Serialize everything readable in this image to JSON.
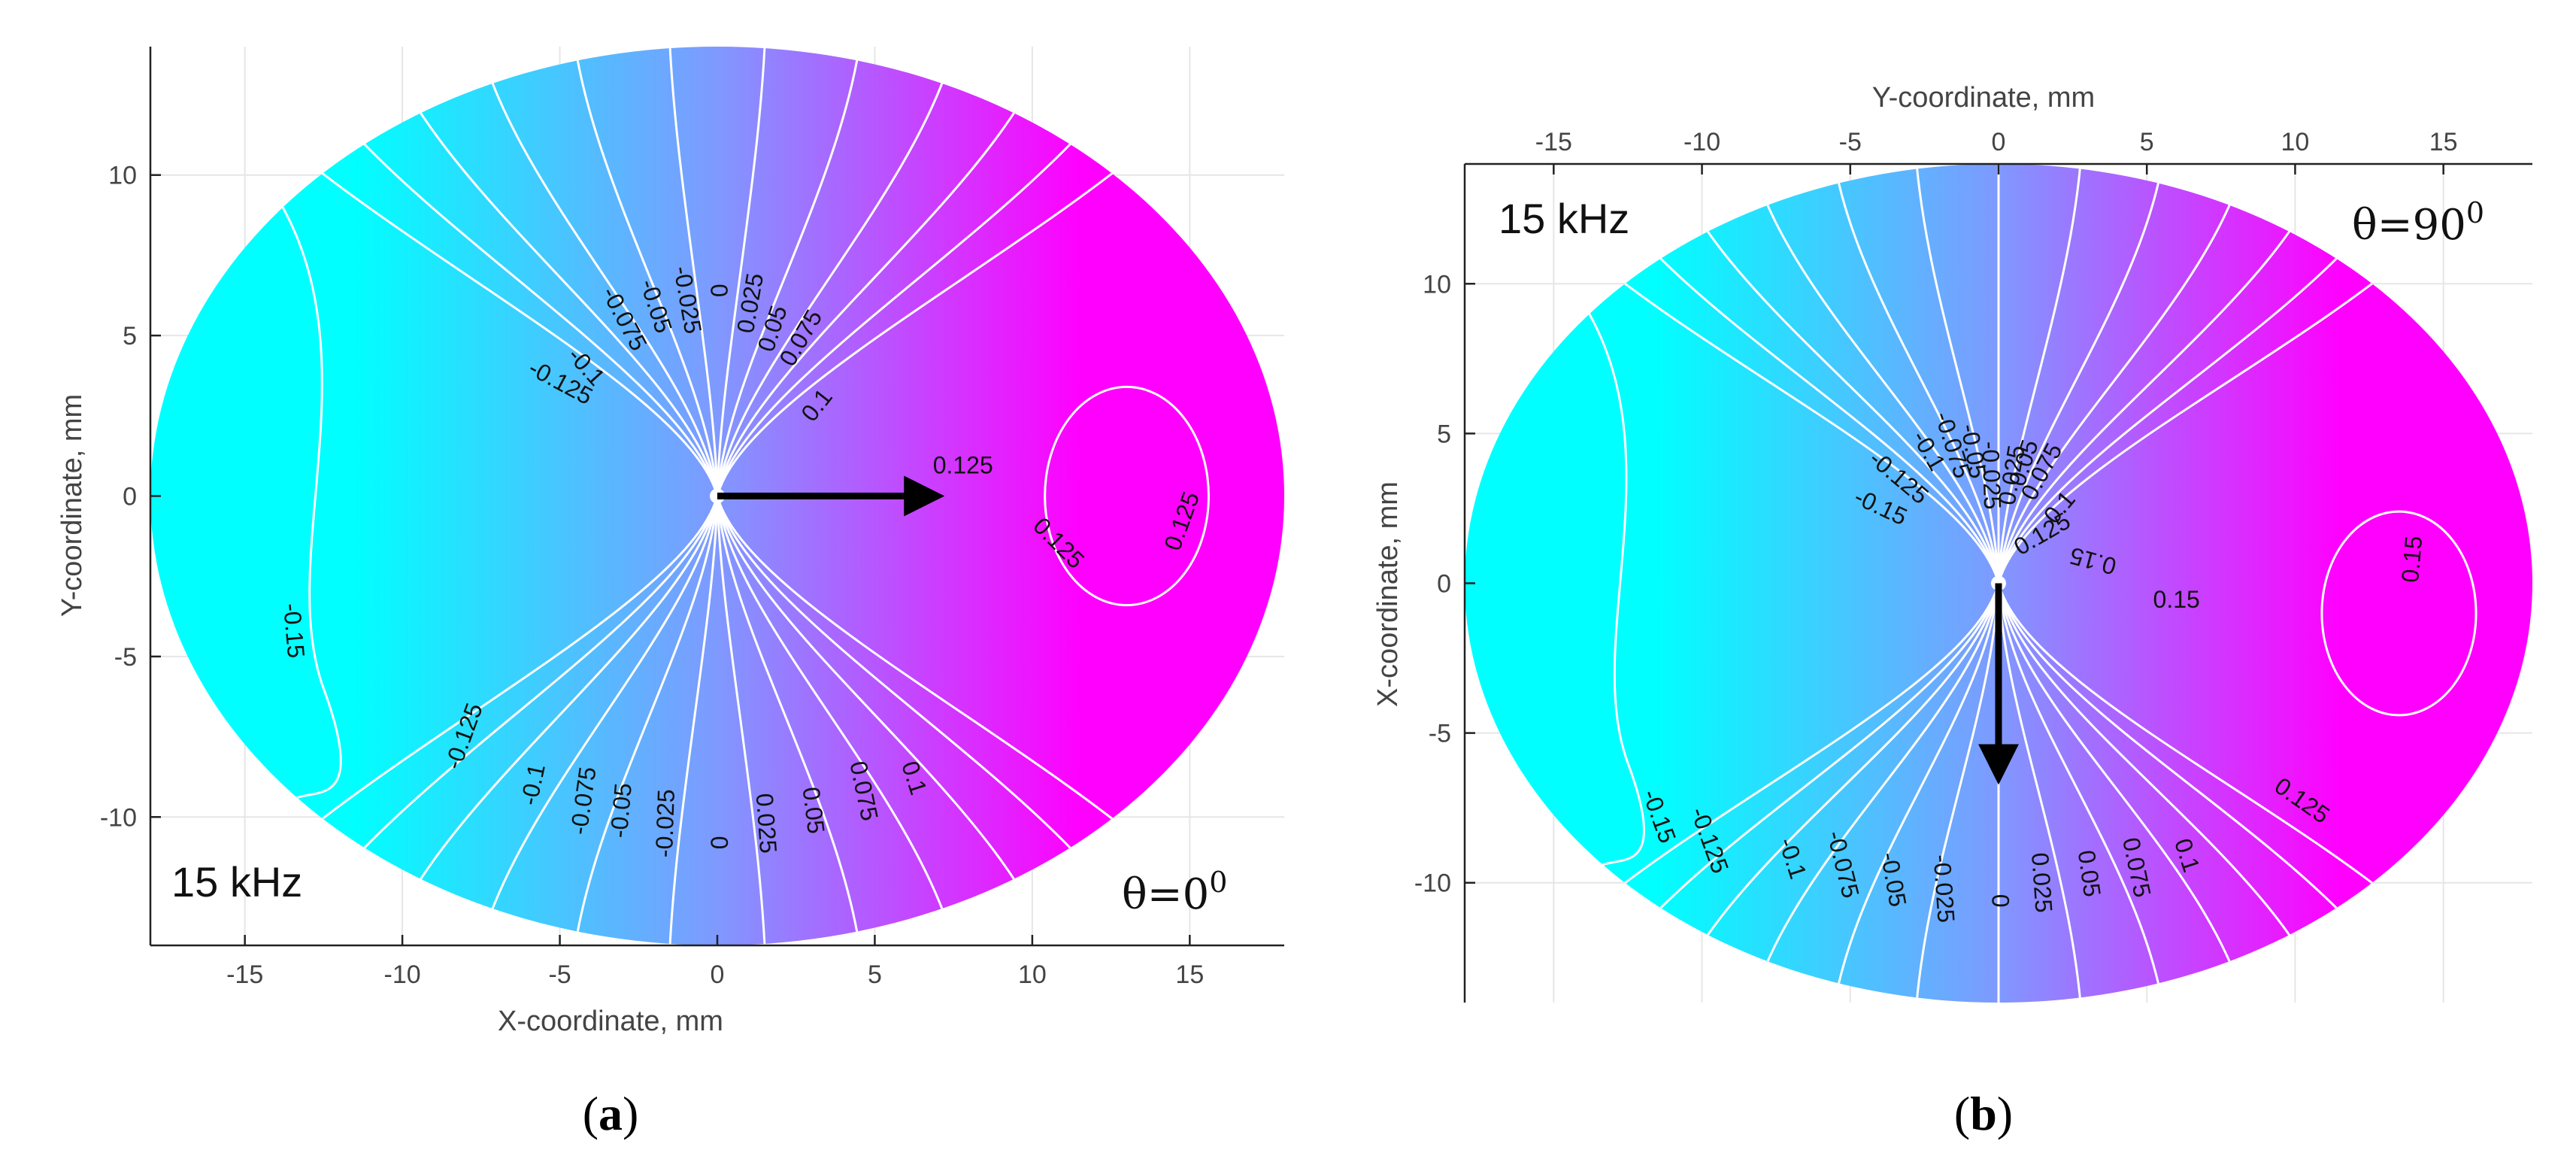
{
  "chart_data": [
    {
      "type": "contour",
      "panel": "(a)",
      "caption": {
        "open": "(",
        "letter": "a",
        "close": ")"
      },
      "frequency_label": "15 kHz",
      "theta_label": {
        "base": "θ=0",
        "sup": "0"
      },
      "xlabel": "X-coordinate, mm",
      "ylabel": "Y-coordinate, mm",
      "x_axis_position": "bottom",
      "y_axis_position": "left",
      "xlim": [
        -18,
        18
      ],
      "ylim": [
        -14,
        14
      ],
      "xticks": [
        -15,
        -10,
        -5,
        0,
        5,
        10,
        15
      ],
      "yticks": [
        -10,
        -5,
        0,
        5,
        10
      ],
      "xtick_labels": [
        "-15",
        "-10",
        "-5",
        "0",
        "5",
        "10",
        "15"
      ],
      "ytick_labels": [
        "-10",
        "-5",
        "0",
        "5",
        "10"
      ],
      "domain_ellipse": {
        "cx": 0,
        "cy": 0,
        "rx": 18,
        "ry": 14
      },
      "source_point": [
        0,
        0
      ],
      "arrow": {
        "from": [
          0,
          0
        ],
        "to": [
          7,
          0
        ]
      },
      "color_low": "#00ffff",
      "color_high": "#ff00ff",
      "contour_levels": [
        -0.15,
        -0.125,
        -0.1,
        -0.075,
        -0.05,
        -0.025,
        0,
        0.025,
        0.05,
        0.075,
        0.1,
        0.125
      ],
      "contour_labels": [
        {
          "text": "-0.15",
          "x": -13.5,
          "y": -4.2,
          "rot": 85
        },
        {
          "text": "-0.125",
          "x": -5.0,
          "y": 3.5,
          "rot": 28
        },
        {
          "text": "-0.125",
          "x": -8.0,
          "y": -7.5,
          "rot": -70
        },
        {
          "text": "-0.1",
          "x": -4.2,
          "y": 4.0,
          "rot": 48
        },
        {
          "text": "-0.075",
          "x": -3.0,
          "y": 5.5,
          "rot": 62
        },
        {
          "text": "-0.05",
          "x": -2.0,
          "y": 5.9,
          "rot": 72
        },
        {
          "text": "-0.025",
          "x": -1.0,
          "y": 6.1,
          "rot": 80
        },
        {
          "text": "0",
          "x": 0.0,
          "y": 6.4,
          "rot": 88
        },
        {
          "text": "0.025",
          "x": 1.1,
          "y": 6.0,
          "rot": -80
        },
        {
          "text": "0.05",
          "x": 1.8,
          "y": 5.2,
          "rot": -72
        },
        {
          "text": "0.075",
          "x": 2.7,
          "y": 4.9,
          "rot": -60
        },
        {
          "text": "0.1",
          "x": 3.2,
          "y": 2.8,
          "rot": -52
        },
        {
          "text": "0.125",
          "x": 7.8,
          "y": 0.9,
          "rot": 0
        },
        {
          "text": "0.125",
          "x": 10.8,
          "y": -1.5,
          "rot": 45
        },
        {
          "text": "0.125",
          "x": 14.8,
          "y": -0.8,
          "rot": -70
        },
        {
          "text": "-0.1",
          "x": -5.8,
          "y": -9.0,
          "rot": -78
        },
        {
          "text": "-0.075",
          "x": -4.2,
          "y": -9.5,
          "rot": -82
        },
        {
          "text": "-0.05",
          "x": -3.0,
          "y": -9.8,
          "rot": -85
        },
        {
          "text": "-0.025",
          "x": -1.6,
          "y": -10.2,
          "rot": -88
        },
        {
          "text": "0",
          "x": 0.0,
          "y": -10.8,
          "rot": 90
        },
        {
          "text": "0.025",
          "x": 1.5,
          "y": -10.2,
          "rot": 86
        },
        {
          "text": "0.05",
          "x": 3.0,
          "y": -9.8,
          "rot": 83
        },
        {
          "text": "0.075",
          "x": 4.6,
          "y": -9.2,
          "rot": 78
        },
        {
          "text": "0.1",
          "x": 6.2,
          "y": -8.8,
          "rot": 72
        }
      ]
    },
    {
      "type": "contour",
      "panel": "(b)",
      "caption": {
        "open": "(",
        "letter": "b",
        "close": ")"
      },
      "frequency_label": "15 kHz",
      "theta_label": {
        "base": "θ=90",
        "sup": "0"
      },
      "xlabel": "Y-coordinate, mm",
      "ylabel": "X-coordinate, mm",
      "x_axis_position": "top",
      "y_axis_position": "left",
      "xlim": [
        -18,
        18
      ],
      "ylim": [
        -14,
        14
      ],
      "xticks": [
        -15,
        -10,
        -5,
        0,
        5,
        10,
        15
      ],
      "yticks": [
        -10,
        -5,
        0,
        5,
        10
      ],
      "xtick_labels": [
        "-15",
        "-10",
        "-5",
        "0",
        "5",
        "10",
        "15"
      ],
      "ytick_labels": [
        "-10",
        "-5",
        "0",
        "5",
        "10"
      ],
      "domain_ellipse": {
        "cx": 0,
        "cy": 0,
        "rx": 18,
        "ry": 14
      },
      "source_point": [
        0,
        0
      ],
      "arrow": {
        "from": [
          0,
          0
        ],
        "to": [
          0,
          -6.5
        ]
      },
      "color_low": "#00ffff",
      "color_high": "#ff00ff",
      "contour_levels": [
        -0.15,
        -0.125,
        -0.1,
        -0.075,
        -0.05,
        -0.025,
        0,
        0.025,
        0.05,
        0.075,
        0.1,
        0.125,
        0.15
      ],
      "contour_labels": [
        {
          "text": "-0.15",
          "x": -4.0,
          "y": 2.5,
          "rot": 25
        },
        {
          "text": "-0.125",
          "x": -3.4,
          "y": 3.5,
          "rot": 40
        },
        {
          "text": "-0.1",
          "x": -2.4,
          "y": 4.4,
          "rot": 60
        },
        {
          "text": "-0.075",
          "x": -1.6,
          "y": 4.6,
          "rot": 72
        },
        {
          "text": "-0.05",
          "x": -0.9,
          "y": 4.4,
          "rot": 80
        },
        {
          "text": "-0.025",
          "x": -0.3,
          "y": 3.6,
          "rot": 88
        },
        {
          "text": "0.025",
          "x": 0.5,
          "y": 3.6,
          "rot": -80
        },
        {
          "text": "0.05",
          "x": 0.9,
          "y": 4.0,
          "rot": -72
        },
        {
          "text": "0.075",
          "x": 1.5,
          "y": 3.7,
          "rot": -62
        },
        {
          "text": "0.1",
          "x": 2.1,
          "y": 2.5,
          "rot": -50
        },
        {
          "text": "0.125",
          "x": 1.5,
          "y": 1.6,
          "rot": -30
        },
        {
          "text": "0.15",
          "x": 3.2,
          "y": 0.8,
          "rot": 195
        },
        {
          "text": "0.15",
          "x": 6.0,
          "y": -0.6,
          "rot": 0
        },
        {
          "text": "0.15",
          "x": 14.0,
          "y": 0.8,
          "rot": -85
        },
        {
          "text": "0.125",
          "x": 10.2,
          "y": -7.3,
          "rot": 35
        },
        {
          "text": "-0.15",
          "x": -11.5,
          "y": -7.8,
          "rot": 70
        },
        {
          "text": "-0.125",
          "x": -9.8,
          "y": -8.6,
          "rot": 70
        },
        {
          "text": "-0.1",
          "x": -7.0,
          "y": -9.2,
          "rot": 72
        },
        {
          "text": "-0.075",
          "x": -5.3,
          "y": -9.4,
          "rot": 76
        },
        {
          "text": "-0.05",
          "x": -3.6,
          "y": -9.9,
          "rot": 80
        },
        {
          "text": "-0.025",
          "x": -1.9,
          "y": -10.2,
          "rot": 86
        },
        {
          "text": "0",
          "x": 0.0,
          "y": -10.6,
          "rot": 90
        },
        {
          "text": "0.025",
          "x": 1.4,
          "y": -10.0,
          "rot": 86
        },
        {
          "text": "0.05",
          "x": 3.0,
          "y": -9.7,
          "rot": 82
        },
        {
          "text": "0.075",
          "x": 4.6,
          "y": -9.5,
          "rot": 78
        },
        {
          "text": "0.1",
          "x": 6.3,
          "y": -9.1,
          "rot": 72
        }
      ]
    }
  ]
}
